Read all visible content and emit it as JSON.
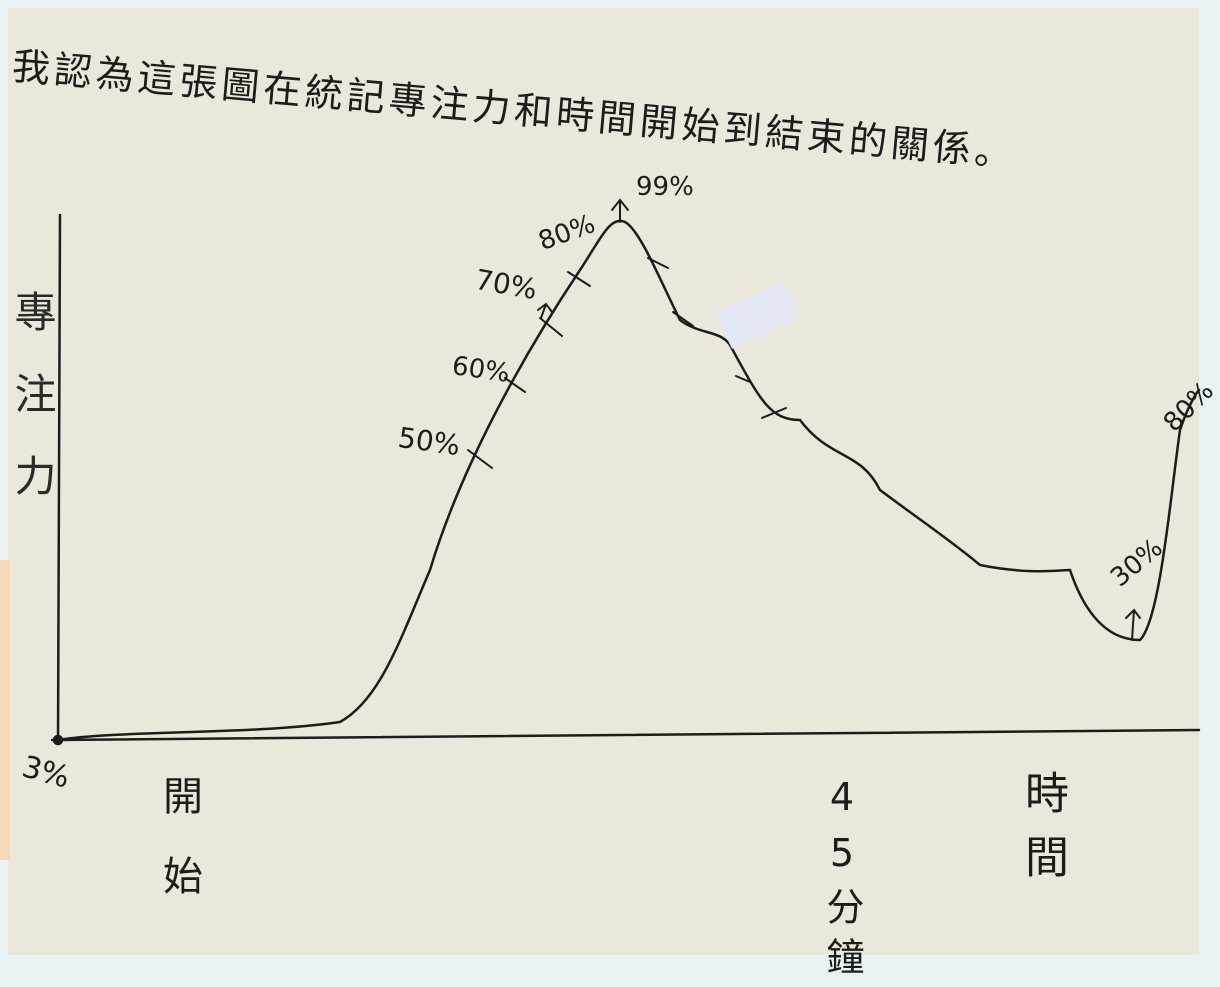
{
  "title": "我認為這張圖在統記專注力和時間開始到結束的關係。",
  "y_axis_label": "專注力",
  "x_labels": {
    "start": "開始",
    "middle": "45分鐘",
    "end": "時間"
  },
  "annotations": {
    "start": "3%",
    "a50": "50%",
    "a60": "60%",
    "a70": "70%",
    "a80": "80%",
    "peak": "99%",
    "low": "30%",
    "end": "80%"
  }
}
